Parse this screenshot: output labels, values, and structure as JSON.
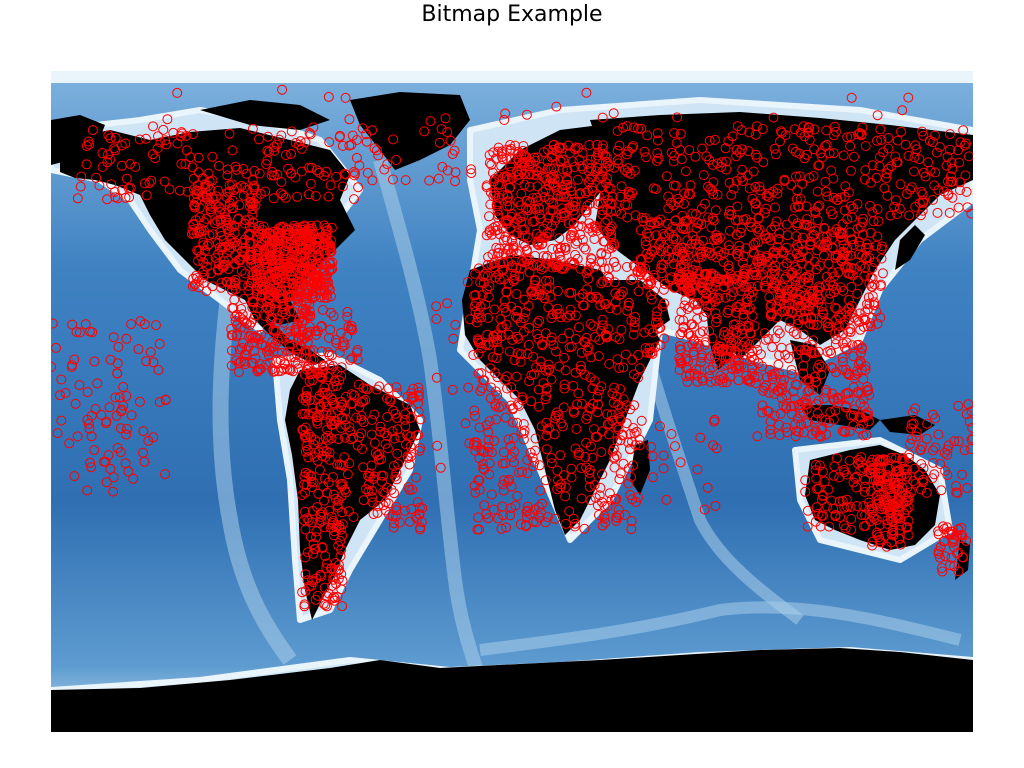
{
  "title": "Bitmap Example",
  "colors": {
    "land": "#000000",
    "ocean_deep": "#2e6fb3",
    "ocean_mid": "#5a98cf",
    "ocean_shallow": "#bcd9ef",
    "ice": "#ffffff",
    "marker": "#ff0000",
    "background": "#ffffff"
  },
  "map": {
    "projection": "equirectangular",
    "lon_range": [
      -180,
      180
    ],
    "lat_range": [
      -90,
      90
    ],
    "basemap": "bathymetry",
    "marker_style": "hollow-circle",
    "clusters": [
      {
        "region": "north-america-east",
        "lon": [
          -100,
          -70
        ],
        "lat": [
          28,
          48
        ],
        "n": 420
      },
      {
        "region": "north-america-west",
        "lon": [
          -125,
          -100
        ],
        "lat": [
          30,
          60
        ],
        "n": 200
      },
      {
        "region": "alaska-canada-north",
        "lon": [
          -170,
          -60
        ],
        "lat": [
          55,
          75
        ],
        "n": 160
      },
      {
        "region": "central-america",
        "lon": [
          -110,
          -78
        ],
        "lat": [
          8,
          28
        ],
        "n": 170
      },
      {
        "region": "caribbean",
        "lon": [
          -85,
          -60
        ],
        "lat": [
          10,
          25
        ],
        "n": 60
      },
      {
        "region": "south-america-west",
        "lon": [
          -82,
          -66
        ],
        "lat": [
          -56,
          10
        ],
        "n": 230
      },
      {
        "region": "south-america-east",
        "lon": [
          -66,
          -35
        ],
        "lat": [
          -35,
          5
        ],
        "n": 160
      },
      {
        "region": "europe",
        "lon": [
          -10,
          40
        ],
        "lat": [
          36,
          70
        ],
        "n": 420
      },
      {
        "region": "north-africa-middle-east",
        "lon": [
          -15,
          60
        ],
        "lat": [
          12,
          38
        ],
        "n": 250
      },
      {
        "region": "sub-saharan-africa",
        "lon": [
          -15,
          50
        ],
        "lat": [
          -35,
          12
        ],
        "n": 320
      },
      {
        "region": "russia-siberia",
        "lon": [
          40,
          180
        ],
        "lat": [
          50,
          75
        ],
        "n": 320
      },
      {
        "region": "central-asia",
        "lon": [
          50,
          100
        ],
        "lat": [
          30,
          50
        ],
        "n": 200
      },
      {
        "region": "south-asia",
        "lon": [
          65,
          95
        ],
        "lat": [
          5,
          35
        ],
        "n": 240
      },
      {
        "region": "east-asia",
        "lon": [
          100,
          145
        ],
        "lat": [
          20,
          50
        ],
        "n": 300
      },
      {
        "region": "southeast-asia",
        "lon": [
          95,
          140
        ],
        "lat": [
          -10,
          20
        ],
        "n": 230
      },
      {
        "region": "australia-east",
        "lon": [
          140,
          155
        ],
        "lat": [
          -40,
          -15
        ],
        "n": 150
      },
      {
        "region": "australia-west",
        "lon": [
          113,
          140
        ],
        "lat": [
          -35,
          -15
        ],
        "n": 70
      },
      {
        "region": "oceania",
        "lon": [
          155,
          180
        ],
        "lat": [
          -25,
          0
        ],
        "n": 60
      },
      {
        "region": "new-zealand",
        "lon": [
          166,
          179
        ],
        "lat": [
          -47,
          -34
        ],
        "n": 40
      },
      {
        "region": "pacific-islands-west",
        "lon": [
          -180,
          -150
        ],
        "lat": [
          -25,
          22
        ],
        "n": 50
      },
      {
        "region": "hawaii-french-polynesia",
        "lon": [
          -160,
          -135
        ],
        "lat": [
          -25,
          22
        ],
        "n": 40
      },
      {
        "region": "atlantic-islands",
        "lon": [
          -30,
          -10
        ],
        "lat": [
          -20,
          40
        ],
        "n": 20
      },
      {
        "region": "indian-ocean-islands",
        "lon": [
          40,
          80
        ],
        "lat": [
          -30,
          -5
        ],
        "n": 25
      },
      {
        "region": "greenland-iceland",
        "lon": [
          -60,
          -15
        ],
        "lat": [
          60,
          75
        ],
        "n": 30
      },
      {
        "region": "arctic-scatter",
        "lon": [
          -180,
          180
        ],
        "lat": [
          72,
          85
        ],
        "n": 25
      }
    ]
  }
}
